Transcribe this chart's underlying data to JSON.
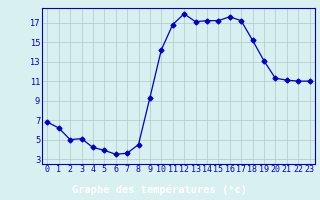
{
  "x": [
    0,
    1,
    2,
    3,
    4,
    5,
    6,
    7,
    8,
    9,
    10,
    11,
    12,
    13,
    14,
    15,
    16,
    17,
    18,
    19,
    20,
    21,
    22,
    23
  ],
  "y": [
    6.8,
    6.2,
    5.0,
    5.1,
    4.2,
    3.9,
    3.5,
    3.6,
    4.5,
    9.3,
    14.2,
    16.8,
    17.9,
    17.1,
    17.2,
    17.2,
    17.6,
    17.2,
    15.2,
    13.1,
    11.3,
    11.1,
    11.0,
    11.0
  ],
  "line_color": "#0000cc",
  "marker": "D",
  "marker_size": 2.5,
  "bg_color": "#d8f0f0",
  "grid_color": "#b0c8c8",
  "xlabel": "Graphe des températures (°c)",
  "xlabel_color": "#ffffff",
  "xlabel_bg": "#1a1aaa",
  "ylabel_ticks": [
    3,
    5,
    7,
    9,
    11,
    13,
    15,
    17
  ],
  "xlim": [
    -0.5,
    23.5
  ],
  "ylim": [
    2.5,
    18.5
  ],
  "xtick_labels": [
    "0",
    "1",
    "2",
    "3",
    "4",
    "5",
    "6",
    "7",
    "8",
    "9",
    "10",
    "11",
    "12",
    "13",
    "14",
    "15",
    "16",
    "17",
    "18",
    "19",
    "20",
    "21",
    "22",
    "23"
  ],
  "tick_fontsize": 6.0,
  "label_fontsize": 7.5
}
